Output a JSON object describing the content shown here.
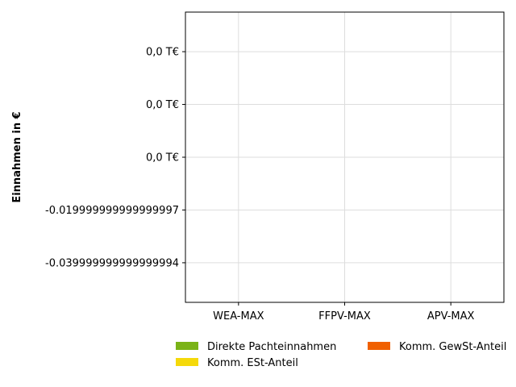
{
  "chart_data": {
    "type": "bar",
    "stacked": true,
    "categories": [
      "WEA-MAX",
      "FFPV-MAX",
      "APV-MAX"
    ],
    "series": [
      {
        "name": "Direkte Pachteinnahmen",
        "values": [
          0,
          0,
          0
        ],
        "color": "#7ab317"
      },
      {
        "name": "Komm. ESt-Anteil",
        "values": [
          0,
          0,
          0
        ],
        "color": "#f5d90a"
      },
      {
        "name": "Komm. GewSt-Anteil",
        "values": [
          0,
          0,
          0
        ],
        "color": "#f06000"
      }
    ],
    "title": "",
    "xlabel": "",
    "ylabel": "Einnahmen in €",
    "ylim": [
      -0.055,
      0.055
    ],
    "yticks": [
      {
        "value": 0.04,
        "label": "0,0 T€"
      },
      {
        "value": 0.02,
        "label": "0,0 T€"
      },
      {
        "value": 0.0,
        "label": "0,0 T€"
      },
      {
        "value": -0.02,
        "label": "-0.019999999999999997"
      },
      {
        "value": -0.04,
        "label": "-0.039999999999999994"
      }
    ],
    "grid": true,
    "legend_position": "bottom"
  }
}
